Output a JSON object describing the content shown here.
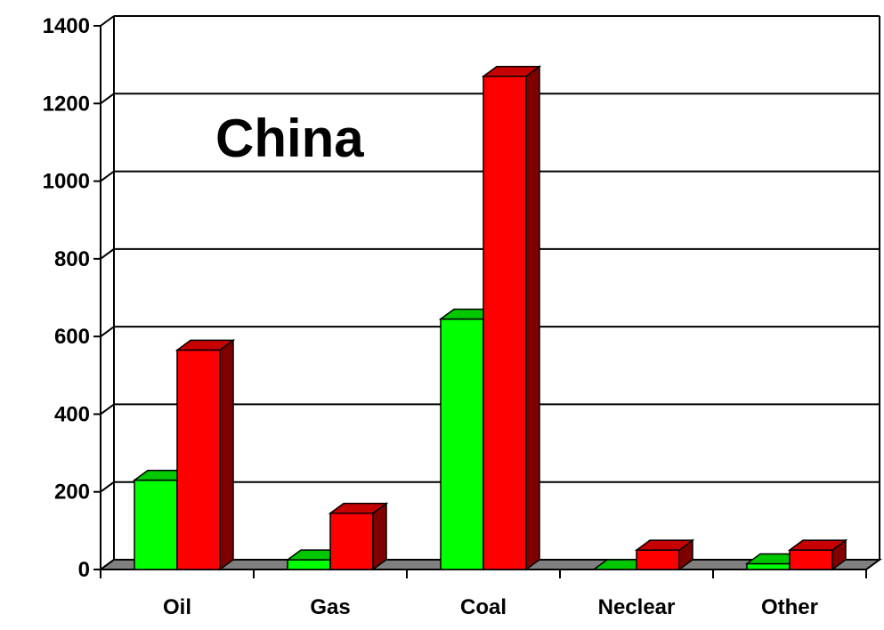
{
  "chart_data": {
    "type": "bar",
    "title": "China",
    "categories": [
      "Oil",
      "Gas",
      "Coal",
      "Neclear",
      "Other"
    ],
    "series": [
      {
        "values": [
          230,
          25,
          645,
          0,
          15
        ],
        "color": "#00ff00"
      },
      {
        "values": [
          565,
          145,
          1270,
          50,
          50
        ],
        "color": "#ff0000"
      }
    ],
    "ylim": [
      0,
      1400
    ],
    "yticks": [
      "0",
      "200",
      "400",
      "600",
      "800",
      "1000",
      "1200",
      "1400"
    ],
    "grid": true,
    "legend": "none",
    "style": "3d-clustered-column"
  }
}
